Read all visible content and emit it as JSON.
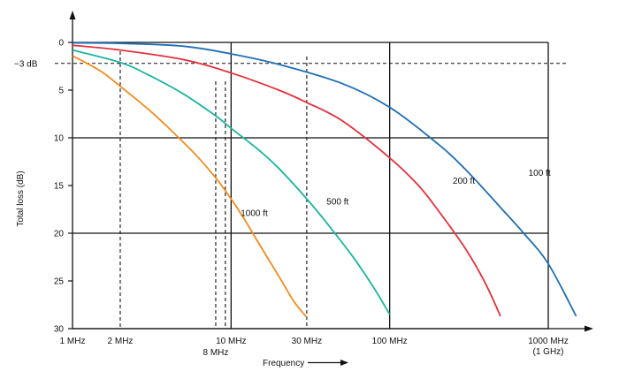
{
  "chart_data": {
    "type": "line",
    "xlabel": "Frequency",
    "ylabel": "Total loss (dB)",
    "x_scale": "log",
    "xlim": [
      1,
      1100
    ],
    "ylim": [
      0,
      30
    ],
    "y_inverted": true,
    "y_ticks": [
      0,
      5,
      10,
      15,
      20,
      25,
      30
    ],
    "x_ticks": [
      {
        "value": 1,
        "label": "1 MHz"
      },
      {
        "value": 2,
        "label": "2 MHz"
      },
      {
        "value": 10,
        "label": "10 MHz"
      },
      {
        "value": 30,
        "label": "30 MHz"
      },
      {
        "value": 100,
        "label": "100 MHz"
      },
      {
        "value": 1000,
        "label": "1000 MHz",
        "sublabel": "(1 GHz)"
      }
    ],
    "extra_x_labels": [
      {
        "value": 8,
        "label": "8 MHz"
      }
    ],
    "reference_line": {
      "y": 2.2,
      "label": "−3 dB"
    },
    "solid_verticals": [
      10,
      100,
      1000
    ],
    "solid_horizontals": [
      0,
      10,
      20,
      30
    ],
    "dashed_verticals": [
      2,
      8,
      9.2,
      30
    ],
    "series": [
      {
        "name": "1000 ft",
        "color": "#f28b1e",
        "x": [
          1,
          1.5,
          2,
          3,
          4,
          6,
          8,
          10,
          12,
          15,
          20,
          25,
          30
        ],
        "y": [
          1.4,
          3.0,
          4.6,
          7.0,
          8.9,
          11.8,
          14.2,
          16.4,
          18.4,
          21.1,
          24.5,
          27.2,
          28.8
        ]
      },
      {
        "name": "500 ft",
        "color": "#1ab5a1",
        "x": [
          1,
          2,
          3,
          5,
          8,
          10,
          15,
          20,
          30,
          40,
          60,
          80,
          100
        ],
        "y": [
          0.8,
          2.1,
          3.4,
          5.4,
          7.7,
          9.0,
          11.3,
          13.2,
          16.4,
          18.9,
          22.7,
          25.8,
          28.5
        ]
      },
      {
        "name": "200 ft",
        "color": "#e5303c",
        "x": [
          1,
          2,
          5,
          10,
          20,
          30,
          50,
          100,
          150,
          200,
          300,
          400,
          500
        ],
        "y": [
          0.3,
          0.8,
          1.8,
          3.2,
          5.0,
          6.3,
          8.2,
          12.1,
          14.9,
          17.5,
          21.6,
          25.2,
          28.7
        ]
      },
      {
        "name": "100 ft",
        "color": "#1f6fb4",
        "x": [
          1,
          2,
          5,
          10,
          20,
          50,
          100,
          200,
          300,
          500,
          700,
          1000,
          1500
        ],
        "y": [
          0.05,
          0.1,
          0.4,
          1.2,
          2.3,
          4.3,
          6.8,
          10.6,
          13.3,
          17.3,
          20.0,
          23.2,
          28.7
        ]
      }
    ],
    "series_label_positions": [
      {
        "name": "1000 ft",
        "x": 11.5,
        "y": 18.2
      },
      {
        "name": "500 ft",
        "x": 40,
        "y": 17.0
      },
      {
        "name": "200 ft",
        "x": 250,
        "y": 14.8
      },
      {
        "name": "100 ft",
        "x": 750,
        "y": 14.0
      }
    ]
  }
}
